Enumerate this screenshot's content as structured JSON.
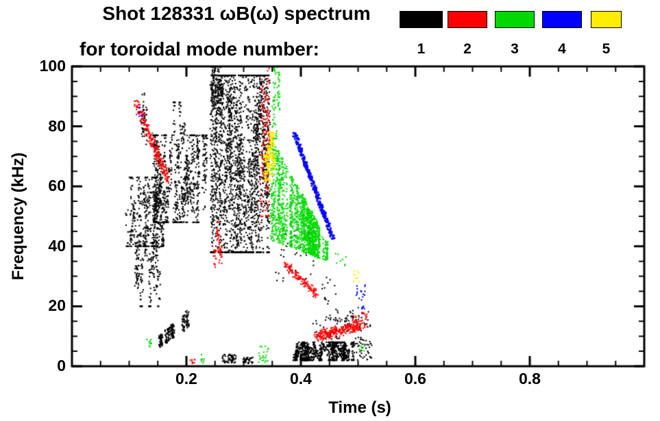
{
  "header": {
    "title_line1": "Shot 128331 ωB(ω) spectrum",
    "title_line2": "for toroidal mode number:"
  },
  "legend": {
    "entries": [
      {
        "label": "1",
        "color": "#000000"
      },
      {
        "label": "2",
        "color": "#ff0000"
      },
      {
        "label": "3",
        "color": "#00d900"
      },
      {
        "label": "4",
        "color": "#0000ff"
      },
      {
        "label": "5",
        "color": "#ffec00"
      }
    ]
  },
  "chart_data": {
    "type": "scatter",
    "title": "Shot 128331 ωB(ω) spectrum for toroidal mode number",
    "xlabel": "Time (s)",
    "ylabel": "Frequency (kHz)",
    "xlim": [
      0,
      1.0
    ],
    "ylim": [
      0,
      100
    ],
    "grid": false,
    "legend_position": "top-right",
    "xticks": {
      "major": [
        0.2,
        0.4,
        0.6,
        0.8
      ],
      "labels": [
        "0.2",
        "0.4",
        "0.6",
        "0.8"
      ],
      "minor_step": 0.05
    },
    "yticks": {
      "major": [
        0,
        20,
        40,
        60,
        80,
        100
      ],
      "labels": [
        "0",
        "20",
        "40",
        "60",
        "80",
        "100"
      ],
      "minor_step": 5
    },
    "modes": {
      "1": "#000000",
      "2": "#ff0000",
      "3": "#00d900",
      "4": "#0000ff",
      "5": "#ffec00"
    },
    "clusters": [
      {
        "m": 1,
        "ty": "striate",
        "t": [
          0.095,
          0.16
        ],
        "f": [
          40,
          63
        ],
        "n": 520
      },
      {
        "m": 1,
        "ty": "striate",
        "t": [
          0.112,
          0.152
        ],
        "f": [
          20,
          46
        ],
        "n": 240
      },
      {
        "m": 1,
        "ty": "striate",
        "t": [
          0.143,
          0.235
        ],
        "f": [
          48,
          77
        ],
        "n": 900
      },
      {
        "m": 1,
        "ty": "striate",
        "t": [
          0.121,
          0.131
        ],
        "f": [
          74,
          91
        ],
        "n": 50
      },
      {
        "m": 1,
        "ty": "striate",
        "t": [
          0.178,
          0.196
        ],
        "f": [
          70,
          88
        ],
        "n": 60
      },
      {
        "m": 1,
        "ty": "wedge",
        "t": [
          0.152,
          0.205
        ],
        "fTop": [
          10,
          19
        ],
        "fBot": [
          6,
          13
        ],
        "n": 230
      },
      {
        "m": 1,
        "ty": "striate",
        "t": [
          0.243,
          0.345
        ],
        "f": [
          38,
          97
        ],
        "n": 2400
      },
      {
        "m": 1,
        "ty": "striate",
        "t": [
          0.243,
          0.263
        ],
        "f": [
          86,
          100
        ],
        "n": 160
      },
      {
        "m": 1,
        "ty": "box",
        "t": [
          0.262,
          0.287
        ],
        "f": [
          1,
          4
        ],
        "n": 60
      },
      {
        "m": 1,
        "ty": "box",
        "t": [
          0.299,
          0.316
        ],
        "f": [
          1,
          3
        ],
        "n": 35
      },
      {
        "m": 1,
        "ty": "striate",
        "t": [
          0.388,
          0.492
        ],
        "f": [
          2,
          8
        ],
        "n": 850
      },
      {
        "m": 1,
        "ty": "box",
        "t": [
          0.42,
          0.52
        ],
        "f": [
          9,
          17
        ],
        "n": 60
      },
      {
        "m": 1,
        "ty": "box",
        "t": [
          0.355,
          0.425
        ],
        "f": [
          28,
          46
        ],
        "n": 45
      },
      {
        "m": 1,
        "ty": "box",
        "t": [
          0.46,
          0.523
        ],
        "f": [
          13,
          19
        ],
        "n": 35
      },
      {
        "m": 1,
        "ty": "box",
        "t": [
          0.492,
          0.525
        ],
        "f": [
          2,
          9
        ],
        "n": 45
      },
      {
        "m": 1,
        "ty": "box",
        "t": [
          0.43,
          0.462
        ],
        "f": [
          20,
          30
        ],
        "n": 14
      },
      {
        "m": 2,
        "ty": "diag",
        "t": [
          0.112,
          0.168
        ],
        "f": [
          88,
          62
        ],
        "w": 3,
        "n": 240
      },
      {
        "m": 2,
        "ty": "striate",
        "t": [
          0.248,
          0.262
        ],
        "f": [
          33,
          48
        ],
        "n": 50
      },
      {
        "m": 2,
        "ty": "striate",
        "t": [
          0.33,
          0.347
        ],
        "f": [
          50,
          100
        ],
        "n": 150
      },
      {
        "m": 2,
        "ty": "diag",
        "t": [
          0.372,
          0.428
        ],
        "f": [
          34,
          24
        ],
        "w": 1.8,
        "n": 130
      },
      {
        "m": 2,
        "ty": "diag",
        "t": [
          0.425,
          0.505
        ],
        "f": [
          10,
          13.5
        ],
        "w": 2.2,
        "n": 260
      },
      {
        "m": 2,
        "ty": "box",
        "t": [
          0.49,
          0.516
        ],
        "f": [
          12,
          18
        ],
        "n": 45
      },
      {
        "m": 2,
        "ty": "box",
        "t": [
          0.205,
          0.216
        ],
        "f": [
          0.5,
          2.5
        ],
        "n": 8
      },
      {
        "m": 3,
        "ty": "wedge",
        "t": [
          0.348,
          0.432
        ],
        "fTop": [
          76,
          47
        ],
        "fBot": [
          42,
          36
        ],
        "n": 1500
      },
      {
        "m": 3,
        "ty": "striate",
        "t": [
          0.35,
          0.363
        ],
        "f": [
          76,
          100
        ],
        "n": 90
      },
      {
        "m": 3,
        "ty": "box",
        "t": [
          0.128,
          0.139
        ],
        "f": [
          6,
          9
        ],
        "n": 10
      },
      {
        "m": 3,
        "ty": "box",
        "t": [
          0.222,
          0.231
        ],
        "f": [
          1,
          4
        ],
        "n": 8
      },
      {
        "m": 3,
        "ty": "box",
        "t": [
          0.325,
          0.346
        ],
        "f": [
          1,
          7
        ],
        "n": 22
      },
      {
        "m": 3,
        "ty": "wedge",
        "t": [
          0.43,
          0.448
        ],
        "fTop": [
          47,
          41
        ],
        "fBot": [
          36,
          35
        ],
        "n": 60
      },
      {
        "m": 3,
        "ty": "box",
        "t": [
          0.46,
          0.48
        ],
        "f": [
          33,
          38
        ],
        "n": 8
      },
      {
        "m": 3,
        "ty": "box",
        "t": [
          0.498,
          0.512
        ],
        "f": [
          3,
          7
        ],
        "n": 6
      },
      {
        "m": 4,
        "ty": "diag",
        "t": [
          0.388,
          0.457
        ],
        "f": [
          78,
          42
        ],
        "w": 1.1,
        "n": 300,
        "s": 2.6
      },
      {
        "m": 4,
        "ty": "box",
        "t": [
          0.497,
          0.513
        ],
        "f": [
          19,
          28
        ],
        "n": 22
      },
      {
        "m": 4,
        "ty": "box",
        "t": [
          0.117,
          0.126
        ],
        "f": [
          83,
          87
        ],
        "n": 7
      },
      {
        "m": 5,
        "ty": "striate",
        "t": [
          0.337,
          0.353
        ],
        "f": [
          62,
          78
        ],
        "n": 150,
        "s": 2.4
      },
      {
        "m": 5,
        "ty": "box",
        "t": [
          0.492,
          0.502
        ],
        "f": [
          28,
          32
        ],
        "n": 10
      }
    ]
  }
}
